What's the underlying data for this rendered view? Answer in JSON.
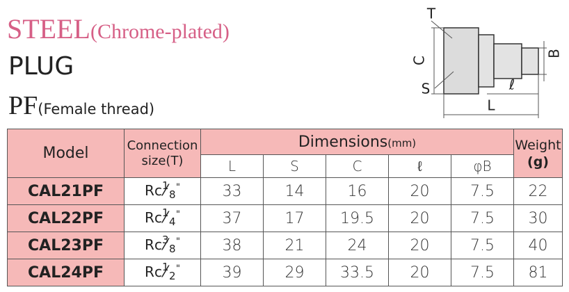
{
  "header": {
    "title": "STEEL",
    "title_note": "(Chrome-plated)",
    "subtitle": "PLUG",
    "type": "PF",
    "type_note": "(Female thread)"
  },
  "diagram": {
    "labels": {
      "T": "T",
      "C": "C",
      "B": "B",
      "S": "S",
      "l": "ℓ",
      "L": "L"
    }
  },
  "table": {
    "headers": {
      "model": "Model",
      "connection": [
        "Connection",
        "size(T)"
      ],
      "dimensions": "Dimensions",
      "dimensions_unit": "(mm)",
      "weight": "Weight",
      "weight_unit": "(g)",
      "dims": [
        "L",
        "S",
        "C",
        "ℓ",
        "φB"
      ]
    },
    "rows": [
      {
        "model": "CAL21PF",
        "connection": [
          "Rc",
          "1",
          "8",
          "\""
        ],
        "values": [
          33,
          14,
          16,
          20,
          7.5
        ],
        "weight": 22
      },
      {
        "model": "CAL22PF",
        "connection": [
          "Rc",
          "1",
          "4",
          "\""
        ],
        "values": [
          37,
          17,
          19.5,
          20,
          7.5
        ],
        "weight": 30
      },
      {
        "model": "CAL23PF",
        "connection": [
          "Rc",
          "3",
          "8",
          "\""
        ],
        "values": [
          38,
          21,
          24,
          20,
          7.5
        ],
        "weight": 40
      },
      {
        "model": "CAL24PF",
        "connection": [
          "Rc",
          "1",
          "2",
          "\""
        ],
        "values": [
          39,
          29,
          33.5,
          20,
          7.5
        ],
        "weight": 81
      }
    ]
  }
}
